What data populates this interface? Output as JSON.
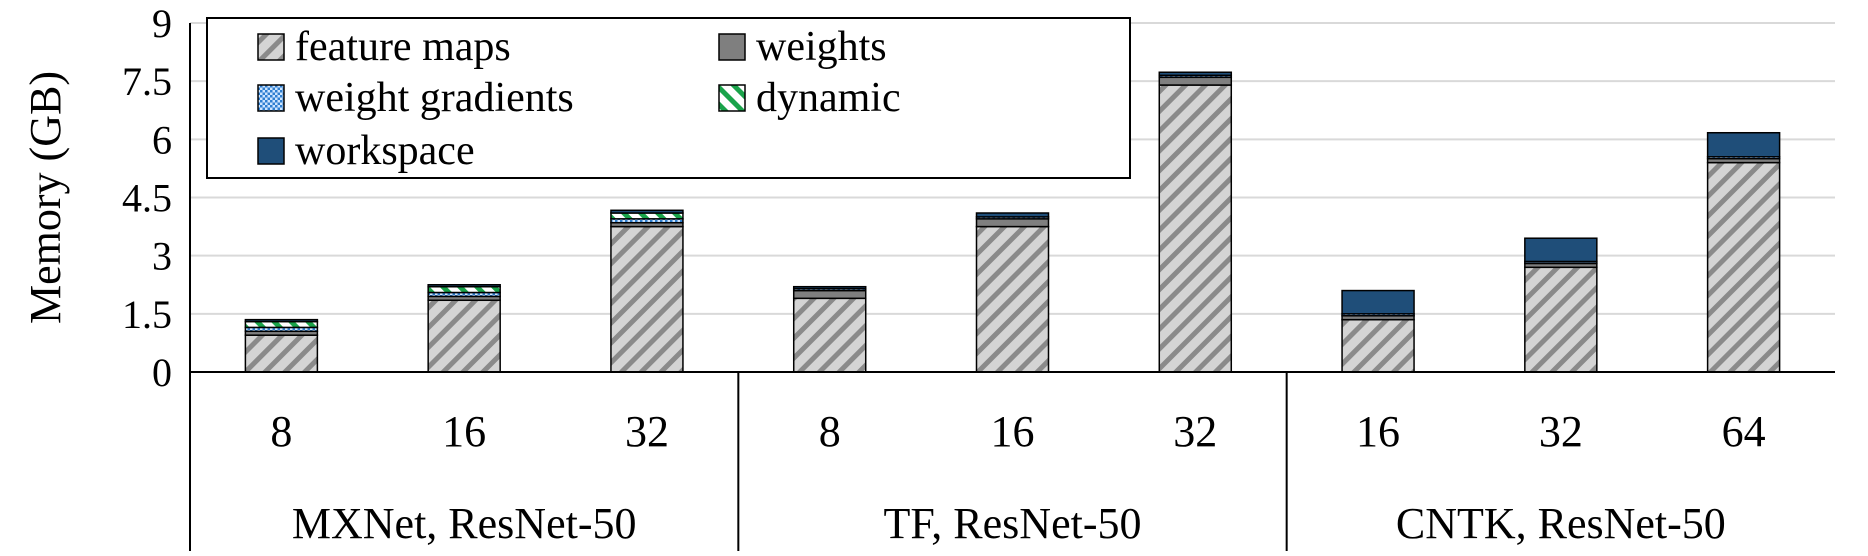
{
  "chart_data": {
    "type": "bar",
    "stacked": true,
    "ylabel": "Memory (GB)",
    "xlabel": "",
    "title": "",
    "ylim": [
      0,
      9
    ],
    "yticks": [
      "0",
      "1.5",
      "3",
      "4.5",
      "6",
      "7.5",
      "9"
    ],
    "grid": true,
    "legend_position": "top-left",
    "groups": [
      {
        "label": "MXNet, ResNet-50",
        "categories": [
          "8",
          "16",
          "32"
        ]
      },
      {
        "label": "TF, ResNet-50",
        "categories": [
          "8",
          "16",
          "32"
        ]
      },
      {
        "label": "CNTK, ResNet-50",
        "categories": [
          "16",
          "32",
          "64"
        ]
      }
    ],
    "categories": [
      "8",
      "16",
      "32",
      "8",
      "16",
      "32",
      "16",
      "32",
      "64"
    ],
    "series": [
      {
        "name": "feature maps",
        "values": [
          0.95,
          1.85,
          3.75,
          1.9,
          3.75,
          7.4,
          1.35,
          2.7,
          5.4
        ]
      },
      {
        "name": "weights",
        "values": [
          0.1,
          0.1,
          0.1,
          0.2,
          0.2,
          0.2,
          0.1,
          0.1,
          0.1
        ]
      },
      {
        "name": "weight gradients",
        "values": [
          0.1,
          0.1,
          0.1,
          0.05,
          0.05,
          0.05,
          0.05,
          0.05,
          0.05
        ]
      },
      {
        "name": "dynamic",
        "values": [
          0.15,
          0.15,
          0.15,
          0.0,
          0.0,
          0.0,
          0.0,
          0.0,
          0.0
        ]
      },
      {
        "name": "workspace",
        "values": [
          0.05,
          0.05,
          0.07,
          0.05,
          0.1,
          0.08,
          0.6,
          0.6,
          0.62
        ]
      }
    ],
    "colors": {
      "feature maps": "#cfcfcf",
      "weights": "#7f7f7f",
      "weight gradients": "#4a90d9",
      "dynamic": "#1aa34a",
      "workspace": "#1f4e79"
    }
  }
}
